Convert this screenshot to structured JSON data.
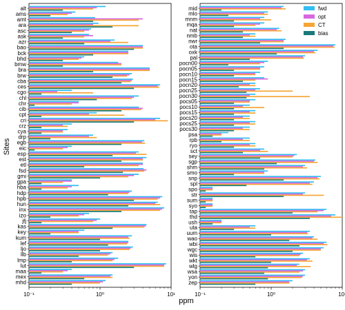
{
  "chart_data": [
    {
      "type": "bar",
      "orientation": "horizontal",
      "xscale": "log",
      "xlim": [
        0.1,
        10
      ],
      "xticks": [
        0.1,
        1,
        10
      ],
      "xticklabels": [
        "10⁻¹",
        "10⁰",
        "10¹"
      ],
      "xlabel": "",
      "ylabel": "Sites",
      "grid": false,
      "categories": [
        "alt",
        "ams",
        "amt",
        "ara",
        "asc",
        "ask",
        "azr",
        "bao",
        "bck",
        "bhd",
        "bmw",
        "bra",
        "brw",
        "cba",
        "ces",
        "cgo",
        "chl",
        "chr",
        "cib",
        "cpt",
        "cri",
        "crz",
        "cya",
        "drp",
        "egb",
        "eic",
        "esp",
        "est",
        "etl",
        "fsd",
        "gmi",
        "gpa",
        "hba",
        "hdp",
        "hpb",
        "hun",
        "inx",
        "izo",
        "jfj",
        "kas",
        "key",
        "kum",
        "lef",
        "ljo",
        "llb",
        "lmp",
        "lut",
        "maa",
        "mex",
        "mhd"
      ],
      "series": [
        {
          "name": "fwd",
          "color": "#33bdf0",
          "values": [
            1.2,
            0.45,
            0.85,
            0.95,
            0.75,
            0.7,
            1.6,
            4.0,
            2.5,
            0.6,
            1.8,
            5.0,
            2.8,
            2.9,
            7.0,
            0.4,
            3.5,
            0.5,
            3.5,
            0.9,
            7.0,
            0.4,
            0.35,
            0.8,
            4.2,
            0.4,
            3.5,
            4.5,
            4.0,
            4.1,
            3.5,
            0.4,
            0.5,
            2.8,
            7.5,
            6.5,
            8.0,
            0.7,
            1.0,
            4.5,
            0.6,
            2.8,
            2.5,
            2.9,
            1.5,
            1.8,
            8.5,
            0.4,
            1.5,
            1.2
          ]
        },
        {
          "name": "opt",
          "color": "#d868e0",
          "values": [
            0.9,
            0.4,
            4.0,
            0.8,
            0.7,
            0.8,
            1.4,
            4.0,
            2.5,
            0.55,
            2.0,
            5.0,
            2.6,
            2.8,
            6.5,
            0.25,
            3.0,
            0.5,
            4.0,
            0.7,
            6.0,
            0.3,
            0.3,
            0.7,
            3.9,
            0.35,
            3.2,
            4.0,
            4.0,
            4.5,
            3.0,
            0.4,
            0.4,
            2.6,
            7.0,
            6.0,
            7.5,
            0.6,
            0.9,
            4.4,
            0.5,
            2.5,
            2.5,
            2.7,
            1.4,
            1.6,
            8.0,
            0.35,
            1.4,
            1.1
          ]
        },
        {
          "name": "CT",
          "color": "#f4a636",
          "values": [
            0.8,
            0.35,
            3.5,
            3.5,
            0.6,
            0.6,
            2.5,
            4.0,
            2.5,
            0.5,
            2.0,
            5.0,
            2.4,
            2.7,
            6.8,
            0.8,
            2.8,
            0.4,
            3.8,
            2.2,
            9.0,
            0.35,
            0.3,
            0.9,
            4.3,
            0.3,
            4.5,
            4.0,
            3.5,
            4.2,
            2.5,
            0.3,
            0.35,
            2.5,
            6.5,
            7.0,
            7.0,
            0.5,
            0.8,
            4.2,
            0.5,
            2.6,
            2.4,
            2.6,
            1.3,
            1.5,
            8.0,
            0.3,
            1.5,
            1.0
          ]
        },
        {
          "name": "bias",
          "color": "#1a7a7a",
          "values": [
            0.3,
            0.2,
            0.8,
            1.5,
            0.4,
            0.3,
            0.6,
            3.0,
            0.8,
            0.3,
            0.3,
            0.8,
            1.5,
            2.0,
            3.0,
            0.15,
            0.9,
            0.12,
            2.0,
            0.15,
            3.0,
            0.15,
            0.15,
            0.2,
            2.0,
            0.12,
            1.5,
            2.0,
            0.6,
            2.1,
            1.0,
            0.15,
            0.15,
            1.3,
            3.0,
            2.5,
            2.0,
            0.2,
            0.15,
            1.5,
            0.2,
            1.0,
            1.3,
            1.0,
            0.5,
            0.4,
            3.0,
            0.15,
            0.6,
            0.4
          ]
        }
      ]
    },
    {
      "type": "bar",
      "orientation": "horizontal",
      "xscale": "log",
      "xlim": [
        0.1,
        10
      ],
      "xticks": [
        0.1,
        1,
        10
      ],
      "xticklabels": [
        "10⁻¹",
        "10⁰",
        "10¹"
      ],
      "xlabel": "ppm",
      "ylabel": "",
      "grid": false,
      "legend": "top-right",
      "categories": [
        "mid",
        "mlo",
        "mnm",
        "mqa",
        "nat",
        "nmb",
        "nwr",
        "ota",
        "oxk",
        "pal",
        "pocn00",
        "pocn05",
        "pocn10",
        "pocn15",
        "pocn20",
        "pocn25",
        "pocn30",
        "pocs05",
        "pocs10",
        "pocs15",
        "pocs20",
        "pocs25",
        "pocs30",
        "psa",
        "rpb",
        "ryo",
        "sct",
        "sey",
        "sgp",
        "shm",
        "smo",
        "snp",
        "spl",
        "spo",
        "str",
        "sum",
        "syo",
        "tap",
        "thd",
        "ush",
        "uta",
        "uum",
        "wao",
        "wbi",
        "wgc",
        "wis",
        "wkt",
        "wlg",
        "wsa",
        "yon",
        "zep"
      ],
      "series": [
        {
          "name": "fwd",
          "color": "#33bdf0",
          "values": [
            1.5,
            0.9,
            0.8,
            0.8,
            1.3,
            0.6,
            1.6,
            8.0,
            4.5,
            3.0,
            0.9,
            0.8,
            0.7,
            0.8,
            0.6,
            0.7,
            0.6,
            0.6,
            0.5,
            0.6,
            0.5,
            0.6,
            0.5,
            0.25,
            0.5,
            0.6,
            0.8,
            2.3,
            4.2,
            3.0,
            0.9,
            5.0,
            4.0,
            0.15,
            3.0,
            0.15,
            0.15,
            6.0,
            8.0,
            0.2,
            0.6,
            3.5,
            4.0,
            6.0,
            5.5,
            2.8,
            3.5,
            2.5,
            3.0,
            3.0,
            2.0
          ]
        },
        {
          "name": "opt",
          "color": "#d868e0",
          "values": [
            1.4,
            0.8,
            0.7,
            0.7,
            1.2,
            0.5,
            1.5,
            7.5,
            4.0,
            2.8,
            0.8,
            0.7,
            0.6,
            0.9,
            0.5,
            0.6,
            0.5,
            0.5,
            0.4,
            0.5,
            0.4,
            0.5,
            0.4,
            0.2,
            0.4,
            0.5,
            0.7,
            2.1,
            4.0,
            2.8,
            0.8,
            4.5,
            3.5,
            0.15,
            2.8,
            0.15,
            0.15,
            5.5,
            7.0,
            0.2,
            0.5,
            3.2,
            3.8,
            5.5,
            5.0,
            2.6,
            3.2,
            2.3,
            2.8,
            2.8,
            1.8
          ]
        },
        {
          "name": "CT",
          "color": "#f4a636",
          "values": [
            1.6,
            0.9,
            1.0,
            0.6,
            1.4,
            0.6,
            1.5,
            7.8,
            4.2,
            2.9,
            0.7,
            0.7,
            0.6,
            0.6,
            0.6,
            2.0,
            3.5,
            0.5,
            0.8,
            0.6,
            0.5,
            0.6,
            0.5,
            0.2,
            0.5,
            0.6,
            0.9,
            2.0,
            4.5,
            3.2,
            0.8,
            4.8,
            3.8,
            0.15,
            5.5,
            0.15,
            0.15,
            4.5,
            10.0,
            0.2,
            0.6,
            3.3,
            4.5,
            6.2,
            5.0,
            2.5,
            3.8,
            3.6,
            2.5,
            2.7,
            1.8
          ]
        },
        {
          "name": "bias",
          "color": "#1a7a7a",
          "values": [
            0.2,
            0.25,
            0.3,
            0.3,
            0.4,
            0.4,
            0.7,
            1.5,
            1.2,
            0.5,
            0.25,
            0.3,
            0.3,
            0.4,
            0.35,
            0.45,
            0.45,
            0.3,
            0.3,
            0.3,
            0.3,
            0.3,
            0.3,
            0.15,
            0.2,
            0.3,
            0.4,
            0.7,
            1.2,
            0.8,
            0.3,
            1.5,
            0.45,
            0.12,
            1.5,
            0.12,
            0.12,
            2.0,
            3.5,
            0.15,
            0.3,
            1.0,
            1.8,
            2.5,
            2.0,
            0.6,
            1.0,
            0.9,
            0.8,
            0.9,
            0.6
          ]
        }
      ]
    }
  ]
}
